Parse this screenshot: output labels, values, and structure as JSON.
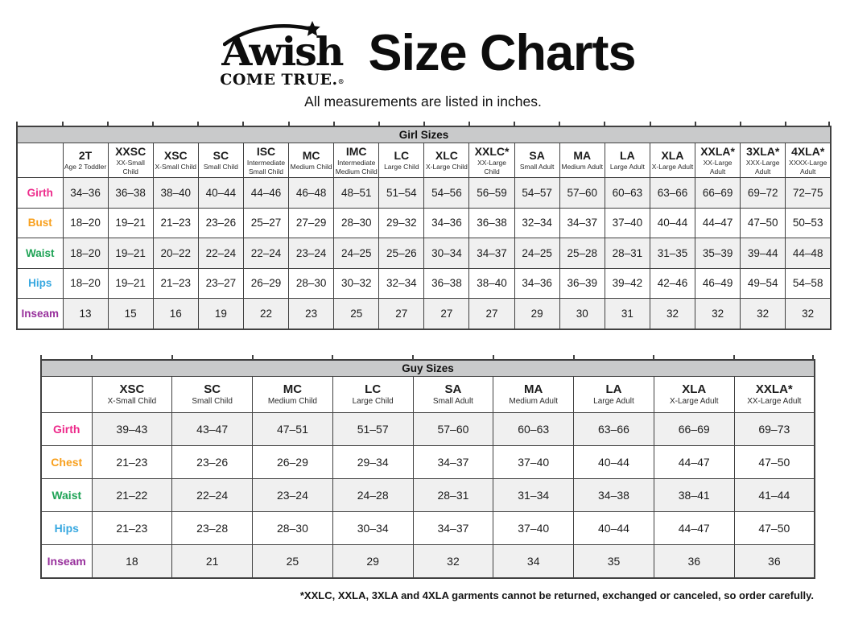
{
  "header": {
    "logo_line1": "Awish",
    "logo_line2": "COME TRUE.",
    "logo_reg": "®",
    "title": "Size Charts",
    "subtitle": "All measurements are listed in inches."
  },
  "palette": {
    "title_bar_bg": "#c9cacb",
    "stripe_bg": "#f0f0f0",
    "table_border": "#414141",
    "girth_color": "#ED2B8B",
    "bust_chest_color": "#F8A01E",
    "waist_color": "#1FA356",
    "hips_color": "#38A8E0",
    "inseam_color": "#98309C"
  },
  "tables": [
    {
      "id": "girl",
      "title": "Girl Sizes",
      "columns": [
        {
          "code": "2T",
          "sub": "Age 2 Toddler"
        },
        {
          "code": "XXSC",
          "sub": "XX-Small Child"
        },
        {
          "code": "XSC",
          "sub": "X-Small Child"
        },
        {
          "code": "SC",
          "sub": "Small Child"
        },
        {
          "code": "ISC",
          "sub": "Intermediate Small Child"
        },
        {
          "code": "MC",
          "sub": "Medium Child"
        },
        {
          "code": "IMC",
          "sub": "Intermediate Medium Child"
        },
        {
          "code": "LC",
          "sub": "Large Child"
        },
        {
          "code": "XLC",
          "sub": "X-Large Child"
        },
        {
          "code": "XXLC*",
          "sub": "XX-Large Child"
        },
        {
          "code": "SA",
          "sub": "Small Adult"
        },
        {
          "code": "MA",
          "sub": "Medium Adult"
        },
        {
          "code": "LA",
          "sub": "Large Adult"
        },
        {
          "code": "XLA",
          "sub": "X-Large Adult"
        },
        {
          "code": "XXLA*",
          "sub": "XX-Large Adult"
        },
        {
          "code": "3XLA*",
          "sub": "XXX-Large Adult"
        },
        {
          "code": "4XLA*",
          "sub": "XXXX-Large Adult"
        }
      ],
      "rows": [
        {
          "label": "Girth",
          "color": "#ED2B8B",
          "values": [
            "34–36",
            "36–38",
            "38–40",
            "40–44",
            "44–46",
            "46–48",
            "48–51",
            "51–54",
            "54–56",
            "56–59",
            "54–57",
            "57–60",
            "60–63",
            "63–66",
            "66–69",
            "69–72",
            "72–75"
          ]
        },
        {
          "label": "Bust",
          "color": "#F8A01E",
          "values": [
            "18–20",
            "19–21",
            "21–23",
            "23–26",
            "25–27",
            "27–29",
            "28–30",
            "29–32",
            "34–36",
            "36–38",
            "32–34",
            "34–37",
            "37–40",
            "40–44",
            "44–47",
            "47–50",
            "50–53"
          ]
        },
        {
          "label": "Waist",
          "color": "#1FA356",
          "values": [
            "18–20",
            "19–21",
            "20–22",
            "22–24",
            "22–24",
            "23–24",
            "24–25",
            "25–26",
            "30–34",
            "34–37",
            "24–25",
            "25–28",
            "28–31",
            "31–35",
            "35–39",
            "39–44",
            "44–48"
          ]
        },
        {
          "label": "Hips",
          "color": "#38A8E0",
          "values": [
            "18–20",
            "19–21",
            "21–23",
            "23–27",
            "26–29",
            "28–30",
            "30–32",
            "32–34",
            "36–38",
            "38–40",
            "34–36",
            "36–39",
            "39–42",
            "42–46",
            "46–49",
            "49–54",
            "54–58"
          ]
        },
        {
          "label": "Inseam",
          "color": "#98309C",
          "values": [
            "13",
            "15",
            "16",
            "19",
            "22",
            "23",
            "25",
            "27",
            "27",
            "27",
            "29",
            "30",
            "31",
            "32",
            "32",
            "32",
            "32"
          ]
        }
      ]
    },
    {
      "id": "guy",
      "title": "Guy Sizes",
      "columns": [
        {
          "code": "XSC",
          "sub": "X-Small Child"
        },
        {
          "code": "SC",
          "sub": "Small Child"
        },
        {
          "code": "MC",
          "sub": "Medium Child"
        },
        {
          "code": "LC",
          "sub": "Large Child"
        },
        {
          "code": "SA",
          "sub": "Small Adult"
        },
        {
          "code": "MA",
          "sub": "Medium Adult"
        },
        {
          "code": "LA",
          "sub": "Large Adult"
        },
        {
          "code": "XLA",
          "sub": "X-Large Adult"
        },
        {
          "code": "XXLA*",
          "sub": "XX-Large Adult"
        }
      ],
      "rows": [
        {
          "label": "Girth",
          "color": "#ED2B8B",
          "values": [
            "39–43",
            "43–47",
            "47–51",
            "51–57",
            "57–60",
            "60–63",
            "63–66",
            "66–69",
            "69–73"
          ]
        },
        {
          "label": "Chest",
          "color": "#F8A01E",
          "values": [
            "21–23",
            "23–26",
            "26–29",
            "29–34",
            "34–37",
            "37–40",
            "40–44",
            "44–47",
            "47–50"
          ]
        },
        {
          "label": "Waist",
          "color": "#1FA356",
          "values": [
            "21–22",
            "22–24",
            "23–24",
            "24–28",
            "28–31",
            "31–34",
            "34–38",
            "38–41",
            "41–44"
          ]
        },
        {
          "label": "Hips",
          "color": "#38A8E0",
          "values": [
            "21–23",
            "23–28",
            "28–30",
            "30–34",
            "34–37",
            "37–40",
            "40–44",
            "44–47",
            "47–50"
          ]
        },
        {
          "label": "Inseam",
          "color": "#98309C",
          "values": [
            "18",
            "21",
            "25",
            "29",
            "32",
            "34",
            "35",
            "36",
            "36"
          ]
        }
      ]
    }
  ],
  "footnote": "*XXLC, XXLA, 3XLA and 4XLA garments cannot be returned, exchanged or canceled, so order carefully."
}
